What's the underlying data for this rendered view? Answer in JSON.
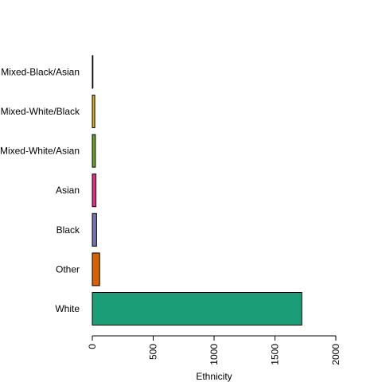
{
  "chart_data": {
    "type": "bar",
    "orientation": "horizontal",
    "title": "",
    "xlabel": "Ethnicity",
    "ylabel": "",
    "categories": [
      "White",
      "Other",
      "Black",
      "Asian",
      "Mixed-White/Asian",
      "Mixed-White/Black",
      "Mixed-Black/Asian"
    ],
    "values": [
      1720,
      60,
      35,
      30,
      25,
      20,
      5
    ],
    "colors": [
      "#1b9e77",
      "#d95f02",
      "#7570b3",
      "#e7298a",
      "#66a61e",
      "#e6ab02",
      "#a6761d"
    ],
    "xlim": [
      0,
      2000
    ],
    "xticks": [
      0,
      500,
      1000,
      1500,
      2000
    ],
    "grid": false,
    "legend": "none"
  }
}
